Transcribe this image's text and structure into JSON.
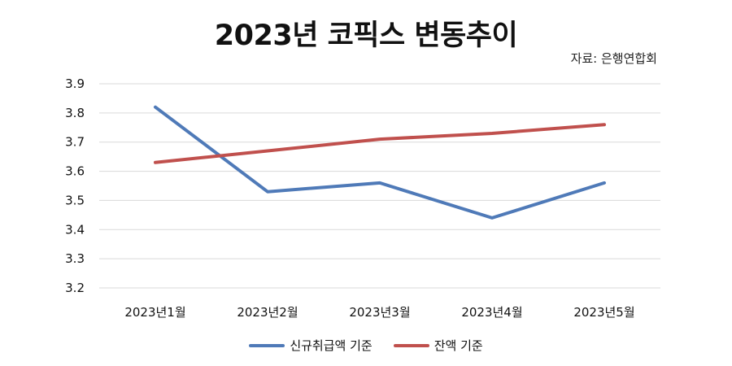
{
  "chart_data": {
    "type": "line",
    "title": "2023년 코픽스 변동추이",
    "source": "자료: 은행연합회",
    "categories": [
      "2023년1월",
      "2023년2월",
      "2023년3월",
      "2023년4월",
      "2023년5월"
    ],
    "series": [
      {
        "name": "신규취급액 기준",
        "color": "#4f7ab8",
        "values": [
          3.82,
          3.53,
          3.56,
          3.44,
          3.56
        ]
      },
      {
        "name": "잔액 기준",
        "color": "#c0504d",
        "values": [
          3.63,
          3.67,
          3.71,
          3.73,
          3.76
        ]
      }
    ],
    "ylim": [
      3.2,
      3.9
    ],
    "yticks": [
      "3.9",
      "3.8",
      "3.7",
      "3.6",
      "3.5",
      "3.4",
      "3.3",
      "3.2"
    ],
    "grid": true,
    "gridline_color": "#d9d9d9",
    "legend_position": "bottom"
  }
}
